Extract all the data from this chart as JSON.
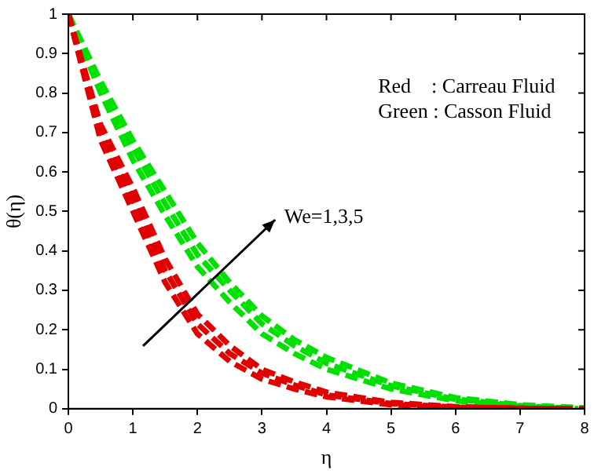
{
  "chart_data": {
    "type": "line",
    "xlabel": "η",
    "ylabel": "θ(η)",
    "xlim": [
      0,
      8
    ],
    "ylim": [
      0,
      1
    ],
    "xticks": [
      0,
      1,
      2,
      3,
      4,
      5,
      6,
      7,
      8
    ],
    "yticks": [
      0,
      0.1,
      0.2,
      0.3,
      0.4,
      0.5,
      0.6,
      0.7,
      0.8,
      0.9,
      1
    ],
    "grid": false,
    "legend": false,
    "marker": "none",
    "line_style": "dashed",
    "series": [
      {
        "color": "#e00000",
        "x": [
          0,
          0.5,
          1,
          1.5,
          2,
          2.5,
          3,
          3.5,
          4,
          5,
          6,
          7,
          7.6
        ],
        "values": [
          1,
          0.68,
          0.5,
          0.32,
          0.19,
          0.12,
          0.075,
          0.05,
          0.03,
          0.01,
          0.003,
          0.001,
          0
        ]
      },
      {
        "color": "#e00000",
        "x": [
          0,
          0.5,
          1,
          1.5,
          2,
          2.5,
          3,
          3.5,
          4,
          5,
          6,
          7,
          7.8
        ],
        "values": [
          1,
          0.7,
          0.53,
          0.35,
          0.215,
          0.14,
          0.09,
          0.06,
          0.035,
          0.013,
          0.004,
          0.001,
          0
        ]
      },
      {
        "color": "#e00000",
        "x": [
          0,
          0.5,
          1,
          1.5,
          2,
          2.5,
          3,
          3.5,
          4,
          5,
          6,
          7,
          8
        ],
        "values": [
          1,
          0.72,
          0.56,
          0.38,
          0.24,
          0.16,
          0.1,
          0.068,
          0.042,
          0.016,
          0.005,
          0.001,
          0
        ]
      },
      {
        "color": "#00e000",
        "x": [
          0,
          0.5,
          1,
          1.5,
          2,
          2.5,
          3,
          3.5,
          4,
          5,
          6,
          7,
          7.7
        ],
        "values": [
          1,
          0.8,
          0.63,
          0.49,
          0.36,
          0.27,
          0.19,
          0.14,
          0.1,
          0.05,
          0.02,
          0.006,
          0
        ]
      },
      {
        "color": "#00e000",
        "x": [
          0,
          0.5,
          1,
          1.5,
          2,
          2.5,
          3,
          3.5,
          4,
          5,
          6,
          7,
          7.9
        ],
        "values": [
          1,
          0.82,
          0.66,
          0.52,
          0.39,
          0.3,
          0.215,
          0.16,
          0.115,
          0.058,
          0.024,
          0.008,
          0
        ]
      },
      {
        "color": "#00e000",
        "x": [
          0,
          0.5,
          1,
          1.5,
          2,
          2.5,
          3,
          3.5,
          4,
          5,
          6,
          7,
          8
        ],
        "values": [
          1,
          0.83,
          0.68,
          0.55,
          0.42,
          0.32,
          0.235,
          0.175,
          0.13,
          0.065,
          0.028,
          0.01,
          0.002
        ]
      }
    ],
    "annotations": [
      "Red    : Carreau Fluid",
      "Green : Casson Fluid",
      "We=1,3,5"
    ]
  }
}
